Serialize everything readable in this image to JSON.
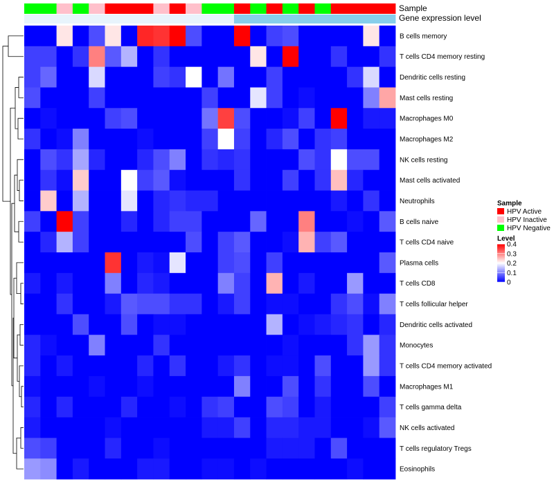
{
  "chart_data": {
    "type": "heatmap",
    "title": "",
    "colors": {
      "low": "#0000FF",
      "mid": "#FFFFFF",
      "high": "#FF0000",
      "dendrogram": "#000000"
    },
    "annotation_tracks": [
      {
        "name": "Sample",
        "values": [
          "HPV Negative",
          "HPV Negative",
          "HPV Inactive",
          "HPV Negative",
          "HPV Inactive",
          "HPV Active",
          "HPV Active",
          "HPV Active",
          "HPV Inactive",
          "HPV Active",
          "HPV Inactive",
          "HPV Negative",
          "HPV Negative",
          "HPV Active",
          "HPV Negative",
          "HPV Active",
          "HPV Negative",
          "HPV Active",
          "HPV Negative",
          "HPV Active",
          "HPV Active",
          "HPV Active",
          "HPV Active"
        ]
      },
      {
        "name": "Gene expression level",
        "values": [
          "Low",
          "Low",
          "Low",
          "Low",
          "Low",
          "Low",
          "Low",
          "Low",
          "Low",
          "Low",
          "Low",
          "Low",
          "Low",
          "High",
          "High",
          "High",
          "High",
          "High",
          "High",
          "High",
          "High",
          "High",
          "High"
        ]
      }
    ],
    "row_labels": [
      "B cells memory",
      "T cells CD4 memory resting",
      "Dendritic cells resting",
      "Mast cells resting",
      "Macrophages M0",
      "Macrophages M2",
      "NK cells resting",
      "Mast cells activated",
      "Neutrophils",
      "B cells naive",
      "T cells CD4 naive",
      "Plasma cells",
      "T cells CD8",
      "T cells follicular helper",
      "Dendritic cells activated",
      "Monocytes",
      "T cells CD4 memory activated",
      "Macrophages M1",
      "T cells gamma delta",
      "NK cells activated",
      "T cells regulatory  Tregs",
      "Eosinophils"
    ],
    "values": [
      [
        0,
        0,
        0.22,
        0,
        0.06,
        0.22,
        0,
        0.37,
        0.36,
        0.4,
        0.06,
        0,
        0,
        0.4,
        0,
        0.05,
        0.06,
        0,
        0,
        0,
        0,
        0.22,
        0
      ],
      [
        0.05,
        0.05,
        0,
        0.04,
        0.3,
        0.07,
        0.14,
        0,
        0.04,
        0,
        0,
        0,
        0,
        0,
        0.22,
        0,
        0.4,
        0,
        0,
        0.04,
        0,
        0,
        0.04
      ],
      [
        0.05,
        0.08,
        0,
        0,
        0.17,
        0,
        0,
        0,
        0.05,
        0.04,
        0.2,
        0,
        0.09,
        0,
        0,
        0.05,
        0,
        0,
        0,
        0,
        0.04,
        0.17,
        0
      ],
      [
        0.06,
        0,
        0,
        0,
        0.05,
        0,
        0,
        0,
        0,
        0,
        0,
        0.05,
        0,
        0,
        0.18,
        0.05,
        0,
        0.01,
        0,
        0,
        0,
        0.1,
        0.27
      ],
      [
        0,
        0.01,
        0,
        0,
        0,
        0.05,
        0.06,
        0,
        0,
        0,
        0,
        0.09,
        0.35,
        0.06,
        0,
        0,
        0.01,
        0.05,
        0,
        0.4,
        0,
        0.02,
        0.02
      ],
      [
        0.04,
        0,
        0.01,
        0.1,
        0,
        0,
        0,
        0.01,
        0,
        0,
        0,
        0.05,
        0.2,
        0.05,
        0,
        0.03,
        0.06,
        0,
        0.04,
        0.05,
        0,
        0,
        0
      ],
      [
        0,
        0.06,
        0.04,
        0.13,
        0.03,
        0,
        0,
        0.03,
        0.06,
        0.1,
        0,
        0.04,
        0.03,
        0.04,
        0,
        0,
        0,
        0.06,
        0.04,
        0.2,
        0.06,
        0.06,
        0
      ],
      [
        0,
        0.04,
        0.01,
        0.24,
        0,
        0,
        0.2,
        0.05,
        0.07,
        0.01,
        0,
        0,
        0,
        0.04,
        0,
        0,
        0.05,
        0,
        0.04,
        0.25,
        0.03,
        0,
        0
      ],
      [
        0,
        0.24,
        0,
        0.14,
        0,
        0,
        0.18,
        0,
        0.03,
        0.04,
        0.03,
        0.03,
        0,
        0,
        0,
        0,
        0,
        0,
        0,
        0.02,
        0,
        0.04,
        0
      ],
      [
        0.05,
        0,
        0.4,
        0.05,
        0,
        0,
        0.03,
        0,
        0.03,
        0.05,
        0.05,
        0,
        0,
        0,
        0.08,
        0,
        0,
        0.3,
        0,
        0,
        0.01,
        0,
        0.07
      ],
      [
        0,
        0.03,
        0.14,
        0.05,
        0,
        0,
        0,
        0,
        0,
        0,
        0.06,
        0,
        0.05,
        0.07,
        0,
        0,
        0.01,
        0.26,
        0.05,
        0.07,
        0,
        0,
        0
      ],
      [
        0,
        0,
        0,
        0,
        0,
        0.36,
        0,
        0.02,
        0.01,
        0.18,
        0,
        0,
        0.05,
        0.06,
        0,
        0.05,
        0,
        0,
        0,
        0,
        0,
        0,
        0.07
      ],
      [
        0.02,
        0,
        0.02,
        0,
        0,
        0.1,
        0,
        0.03,
        0.02,
        0,
        0,
        0,
        0.1,
        0.05,
        0,
        0.26,
        0,
        0.02,
        0,
        0,
        0.12,
        0,
        0
      ],
      [
        0,
        0,
        0.04,
        0,
        0,
        0.02,
        0.07,
        0.06,
        0.06,
        0.04,
        0.04,
        0,
        0.02,
        0.05,
        0,
        0.01,
        0.01,
        0,
        0,
        0.04,
        0.06,
        0.01,
        0.1
      ],
      [
        0,
        0,
        0,
        0.06,
        0,
        0,
        0.06,
        0,
        0.01,
        0.01,
        0,
        0,
        0,
        0,
        0,
        0.14,
        0,
        0.01,
        0.02,
        0.03,
        0.04,
        0,
        0.03
      ],
      [
        0.03,
        0.01,
        0,
        0,
        0.1,
        0,
        0,
        0,
        0.04,
        0,
        0,
        0,
        0,
        0,
        0,
        0,
        0.01,
        0,
        0,
        0,
        0.04,
        0.12,
        0.04
      ],
      [
        0.03,
        0,
        0.02,
        0,
        0,
        0,
        0,
        0.03,
        0,
        0.04,
        0,
        0,
        0.02,
        0.04,
        0,
        0.01,
        0.01,
        0,
        0.06,
        0,
        0,
        0.12,
        0.04
      ],
      [
        0.01,
        0,
        0,
        0,
        0.01,
        0,
        0,
        0.01,
        0,
        0,
        0,
        0,
        0,
        0.1,
        0,
        0,
        0.06,
        0,
        0.04,
        0,
        0,
        0.06,
        0
      ],
      [
        0.03,
        0,
        0.03,
        0,
        0,
        0,
        0.03,
        0,
        0,
        0.01,
        0,
        0.04,
        0.05,
        0,
        0,
        0.06,
        0.05,
        0,
        0.02,
        0,
        0,
        0,
        0.05
      ],
      [
        0.02,
        0,
        0,
        0,
        0,
        0.01,
        0,
        0,
        0,
        0,
        0,
        0.02,
        0.02,
        0.05,
        0,
        0.03,
        0.03,
        0.02,
        0.02,
        0,
        0,
        0.01,
        0.07
      ],
      [
        0.06,
        0.05,
        0,
        0,
        0,
        0.03,
        0,
        0,
        0.01,
        0,
        0,
        0,
        0,
        0,
        0,
        0.02,
        0.02,
        0.02,
        0,
        0.06,
        0,
        0,
        0
      ],
      [
        0.12,
        0.11,
        0,
        0.02,
        0,
        0,
        0,
        0.02,
        0.02,
        0,
        0,
        0.01,
        0.01,
        0,
        0.01,
        0,
        0,
        0,
        0,
        0,
        0.01,
        0,
        0
      ]
    ],
    "legend": {
      "placement": "right",
      "sample_title": "Sample",
      "sample_items": [
        {
          "label": "HPV Active",
          "color": "#FF0000"
        },
        {
          "label": "HPV Inactive",
          "color": "#FFC0CB"
        },
        {
          "label": "HPV Negative",
          "color": "#00FF00"
        }
      ],
      "level_title": "Level",
      "level_colors": {
        "High": "#87CEEB",
        "Low": "#E8F4FC"
      },
      "scale_range": [
        0,
        0.4
      ],
      "scale_ticks": [
        "0",
        "0.1",
        "0.2",
        "0.3",
        "0.4"
      ],
      "scale_tick_values": [
        0,
        0.1,
        0.2,
        0.3,
        0.4
      ]
    }
  }
}
